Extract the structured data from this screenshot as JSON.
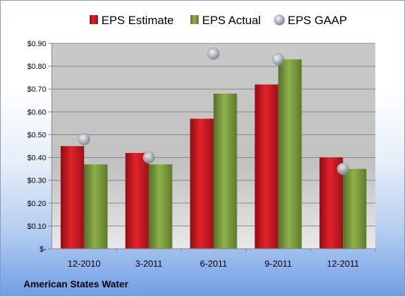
{
  "chart_data": {
    "type": "bar",
    "categories": [
      "12-2010",
      "3-2011",
      "6-2011",
      "9-2011",
      "12-2011"
    ],
    "series": [
      {
        "name": "EPS Estimate",
        "values": [
          0.45,
          0.42,
          0.57,
          0.72,
          0.4
        ],
        "color": "#c8141c"
      },
      {
        "name": "EPS Actual",
        "values": [
          0.37,
          0.37,
          0.68,
          0.83,
          0.35
        ],
        "color": "#7a9a3a"
      }
    ],
    "markers": {
      "name": "EPS GAAP",
      "values": [
        0.48,
        0.4,
        0.855,
        0.83,
        0.35
      ],
      "color": "#b0b6bf"
    },
    "ylim": [
      0,
      0.9
    ],
    "yticks": [
      0,
      0.1,
      0.2,
      0.3,
      0.4,
      0.5,
      0.6,
      0.7,
      0.8,
      0.9
    ],
    "ytick_labels": [
      "$-",
      "$0.10",
      "$0.20",
      "$0.30",
      "$0.40",
      "$0.50",
      "$0.60",
      "$0.70",
      "$0.80",
      "$0.90"
    ],
    "grid": true,
    "legend_position": "top"
  },
  "footer": {
    "company": "American States Water"
  }
}
